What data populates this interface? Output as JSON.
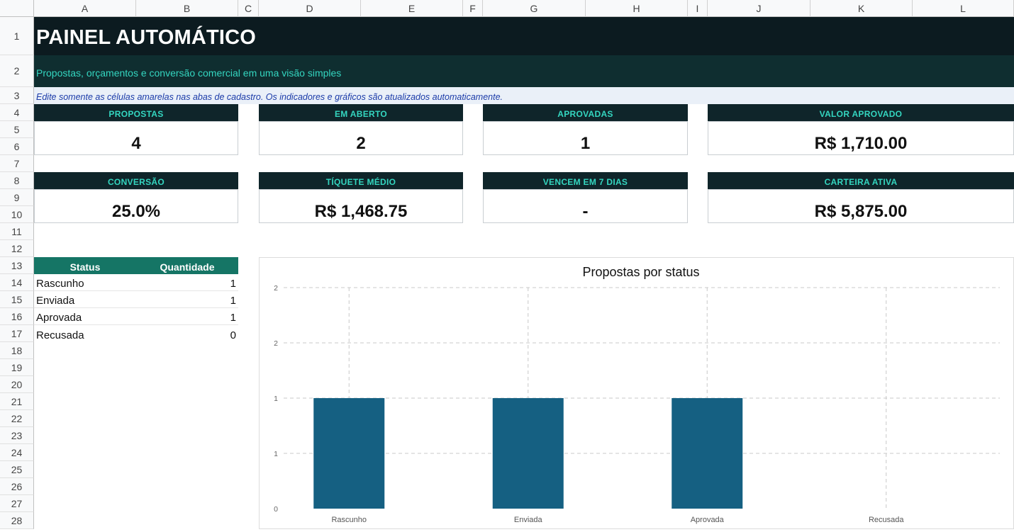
{
  "columns": [
    "A",
    "B",
    "C",
    "D",
    "E",
    "F",
    "G",
    "H",
    "I",
    "J",
    "K",
    "L"
  ],
  "rows": [
    "1",
    "2",
    "3",
    "4",
    "5",
    "6",
    "7",
    "8",
    "9",
    "10",
    "11",
    "12",
    "13",
    "14",
    "15",
    "16",
    "17",
    "18",
    "19",
    "20",
    "21",
    "22",
    "23",
    "24",
    "25",
    "26",
    "27",
    "28"
  ],
  "sheet": {
    "title": "PAINEL AUTOMÁTICO",
    "subtitle": "Propostas, orçamentos e conversão comercial em uma visão simples",
    "note": "Edite somente as células amarelas nas abas de cadastro. Os indicadores e gráficos são atualizados automaticamente."
  },
  "kpis": [
    {
      "label": "PROPOSTAS",
      "value": "4"
    },
    {
      "label": "EM ABERTO",
      "value": "2"
    },
    {
      "label": "APROVADAS",
      "value": "1"
    },
    {
      "label": "VALOR APROVADO",
      "value": "R$ 1,710.00"
    },
    {
      "label": "CONVERSÃO",
      "value": "25.0%"
    },
    {
      "label": "TÍQUETE MÉDIO",
      "value": "R$ 1,468.75"
    },
    {
      "label": "VENCEM EM 7 DIAS",
      "value": "-"
    },
    {
      "label": "CARTEIRA ATIVA",
      "value": "R$ 5,875.00"
    }
  ],
  "status_table": {
    "headers": [
      "Status",
      "Quantidade"
    ],
    "rows": [
      {
        "status": "Rascunho",
        "qty": "1"
      },
      {
        "status": "Enviada",
        "qty": "1"
      },
      {
        "status": "Aprovada",
        "qty": "1"
      },
      {
        "status": "Recusada",
        "qty": "0"
      }
    ]
  },
  "colors": {
    "title_band": "#0c1b20",
    "accent_teal": "#34d6c0",
    "table_header": "#157565",
    "bar": "#156082"
  },
  "chart_data": {
    "type": "bar",
    "title": "Propostas por status",
    "categories": [
      "Rascunho",
      "Enviada",
      "Aprovada",
      "Recusada"
    ],
    "values": [
      1,
      1,
      1,
      0
    ],
    "ylim": [
      0,
      2
    ],
    "y_ticks": [
      0,
      0.5,
      1,
      1.5,
      2
    ],
    "y_tick_labels": [
      "0",
      "1",
      "1",
      "2",
      "2"
    ],
    "grid": true,
    "legend": "none"
  }
}
